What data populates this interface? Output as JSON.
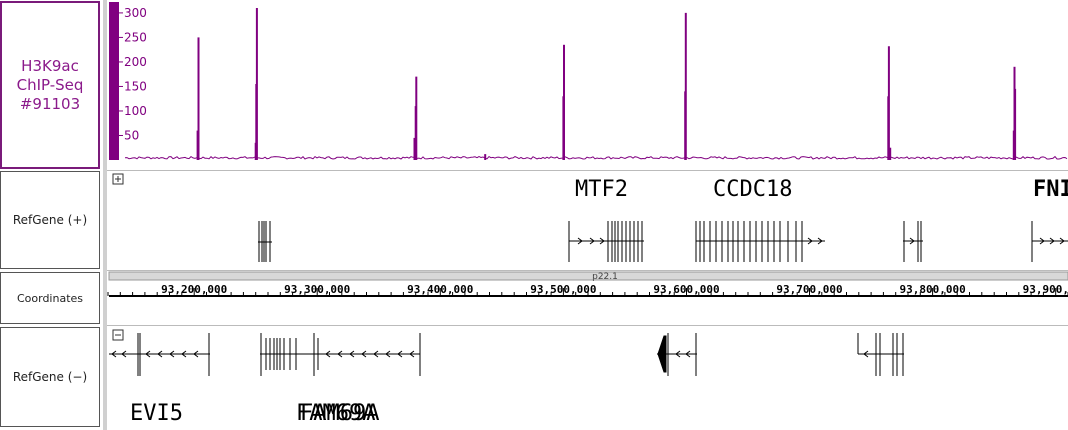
{
  "tracks": {
    "chip": {
      "label": "H3K9ac\nChIP-Seq\n#91103",
      "color": "#800080",
      "y_ticks": [
        50,
        100,
        150,
        200,
        250,
        300
      ]
    },
    "refgene_plus": {
      "label": "RefGene (+)",
      "genes": [
        "MTF2",
        "CCDC18",
        "FNI"
      ]
    },
    "coordinates": {
      "label": "Coordinates",
      "band": "p22.1",
      "ticks": [
        "93,200,000",
        "93,300,000",
        "93,400,000",
        "93,500,000",
        "93,600,000",
        "93,700,000",
        "93,800,000",
        "93,900,000"
      ]
    },
    "refgene_minus": {
      "label": "RefGene (−)",
      "genes": [
        "EVI5",
        "FAM69A",
        "FAM69A"
      ]
    },
    "expand_icon": "plus-box-icon"
  },
  "chart_data": {
    "type": "area",
    "title": "",
    "xlabel": "",
    "ylabel": "",
    "xlim": [
      93130000,
      93910000
    ],
    "ylim": [
      0,
      310
    ],
    "baseline": 2,
    "peaks": [
      {
        "x": 93203500,
        "y": 250
      },
      {
        "x": 93202800,
        "y": 60
      },
      {
        "x": 93251000,
        "y": 310
      },
      {
        "x": 93250500,
        "y": 155
      },
      {
        "x": 93250000,
        "y": 35
      },
      {
        "x": 93380500,
        "y": 170
      },
      {
        "x": 93380000,
        "y": 110
      },
      {
        "x": 93379000,
        "y": 45
      },
      {
        "x": 93436500,
        "y": 12
      },
      {
        "x": 93500500,
        "y": 235
      },
      {
        "x": 93500000,
        "y": 130
      },
      {
        "x": 93599500,
        "y": 300
      },
      {
        "x": 93599000,
        "y": 140
      },
      {
        "x": 93764500,
        "y": 232
      },
      {
        "x": 93764000,
        "y": 130
      },
      {
        "x": 93765500,
        "y": 25
      },
      {
        "x": 93866500,
        "y": 190
      },
      {
        "x": 93867000,
        "y": 145
      },
      {
        "x": 93866000,
        "y": 60
      }
    ]
  }
}
